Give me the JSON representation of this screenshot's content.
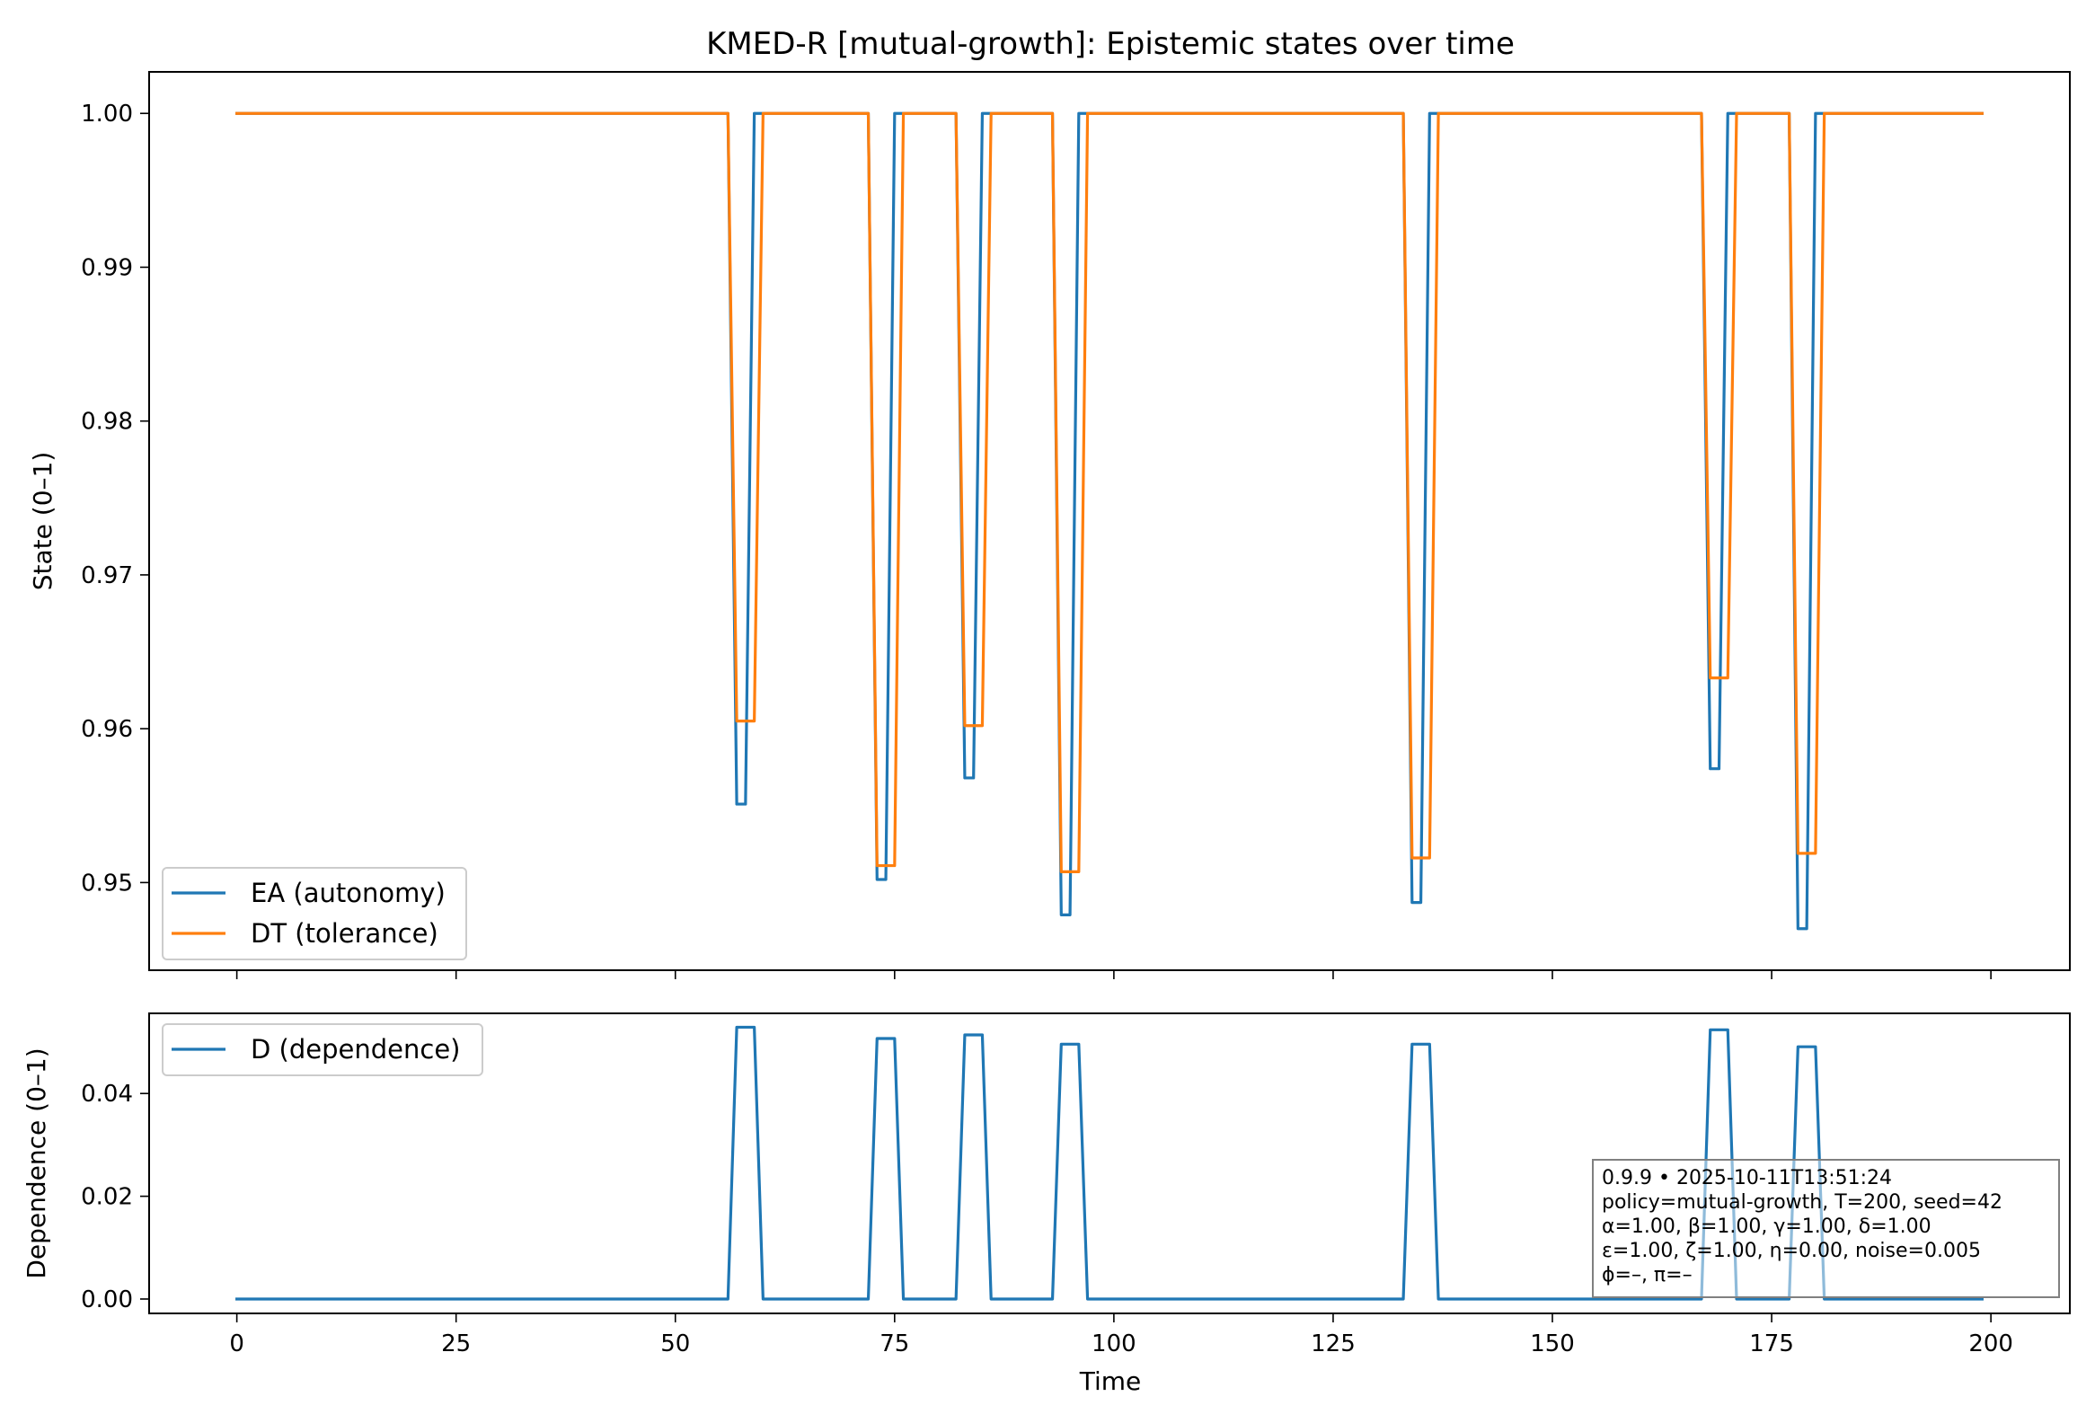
{
  "chart_data": [
    {
      "type": "line",
      "title": "KMED-R [mutual-growth]: Epistemic states over time",
      "xlabel": "",
      "ylabel": "State (0–1)",
      "xlim": [
        -10,
        209
      ],
      "ylim": [
        0.9443,
        1.0027
      ],
      "x_ticks": [
        0,
        25,
        50,
        75,
        100,
        125,
        150,
        175,
        200
      ],
      "x_tick_labels": [
        "",
        "",
        "",
        "",
        "",
        "",
        "",
        "",
        ""
      ],
      "y_ticks": [
        0.95,
        0.96,
        0.97,
        0.98,
        0.99,
        1.0
      ],
      "y_tick_labels": [
        "0.95",
        "0.96",
        "0.97",
        "0.98",
        "0.99",
        "1.00"
      ],
      "grid": false,
      "legend_position": "lower-left",
      "series": [
        {
          "name": "EA (autonomy)",
          "color": "#1f77b4",
          "points": [
            [
              0,
              1.0
            ],
            [
              56,
              1.0
            ],
            [
              57,
              0.9551
            ],
            [
              58,
              0.9551
            ],
            [
              59,
              1.0
            ],
            [
              72,
              1.0
            ],
            [
              73,
              0.9502
            ],
            [
              74,
              0.9502
            ],
            [
              75,
              1.0
            ],
            [
              82,
              1.0
            ],
            [
              83,
              0.9568
            ],
            [
              84,
              0.9568
            ],
            [
              85,
              1.0
            ],
            [
              93,
              1.0
            ],
            [
              94,
              0.9479
            ],
            [
              95,
              0.9479
            ],
            [
              96,
              1.0
            ],
            [
              133,
              1.0
            ],
            [
              134,
              0.9487
            ],
            [
              135,
              0.9487
            ],
            [
              136,
              1.0
            ],
            [
              167,
              1.0
            ],
            [
              168,
              0.9574
            ],
            [
              169,
              0.9574
            ],
            [
              170,
              1.0
            ],
            [
              177,
              1.0
            ],
            [
              178,
              0.947
            ],
            [
              179,
              0.947
            ],
            [
              180,
              1.0
            ],
            [
              199,
              1.0
            ]
          ]
        },
        {
          "name": "DT (tolerance)",
          "color": "#ff7f0e",
          "points": [
            [
              0,
              1.0
            ],
            [
              56,
              1.0
            ],
            [
              57,
              0.9605
            ],
            [
              58,
              0.9605
            ],
            [
              59,
              0.9605
            ],
            [
              60,
              1.0
            ],
            [
              72,
              1.0
            ],
            [
              73,
              0.9511
            ],
            [
              74,
              0.9511
            ],
            [
              75,
              0.9511
            ],
            [
              76,
              1.0
            ],
            [
              82,
              1.0
            ],
            [
              83,
              0.9602
            ],
            [
              84,
              0.9602
            ],
            [
              85,
              0.9602
            ],
            [
              86,
              1.0
            ],
            [
              93,
              1.0
            ],
            [
              94,
              0.9507
            ],
            [
              95,
              0.9507
            ],
            [
              96,
              0.9507
            ],
            [
              97,
              1.0
            ],
            [
              133,
              1.0
            ],
            [
              134,
              0.9516
            ],
            [
              135,
              0.9516
            ],
            [
              136,
              0.9516
            ],
            [
              137,
              1.0
            ],
            [
              167,
              1.0
            ],
            [
              168,
              0.9633
            ],
            [
              169,
              0.9633
            ],
            [
              170,
              0.9633
            ],
            [
              171,
              1.0
            ],
            [
              177,
              1.0
            ],
            [
              178,
              0.9519
            ],
            [
              179,
              0.9519
            ],
            [
              180,
              0.9519
            ],
            [
              181,
              1.0
            ],
            [
              199,
              1.0
            ]
          ]
        }
      ]
    },
    {
      "type": "line",
      "title": "",
      "xlabel": "Time",
      "ylabel": "Dependence (0–1)",
      "xlim": [
        -10,
        209
      ],
      "ylim": [
        -0.0028,
        0.0556
      ],
      "x_ticks": [
        0,
        25,
        50,
        75,
        100,
        125,
        150,
        175,
        200
      ],
      "x_tick_labels": [
        "0",
        "25",
        "50",
        "75",
        "100",
        "125",
        "150",
        "175",
        "200"
      ],
      "y_ticks": [
        0.0,
        0.02,
        0.04
      ],
      "y_tick_labels": [
        "0.00",
        "0.02",
        "0.04"
      ],
      "grid": false,
      "legend_position": "upper-left",
      "series": [
        {
          "name": "D (dependence)",
          "color": "#1f77b4",
          "points": [
            [
              0,
              0.0
            ],
            [
              56,
              0.0
            ],
            [
              57,
              0.0529
            ],
            [
              59,
              0.0529
            ],
            [
              60,
              0.0
            ],
            [
              72,
              0.0
            ],
            [
              73,
              0.0507
            ],
            [
              75,
              0.0507
            ],
            [
              76,
              0.0
            ],
            [
              82,
              0.0
            ],
            [
              83,
              0.0514
            ],
            [
              85,
              0.0514
            ],
            [
              86,
              0.0
            ],
            [
              93,
              0.0
            ],
            [
              94,
              0.0496
            ],
            [
              96,
              0.0496
            ],
            [
              97,
              0.0
            ],
            [
              133,
              0.0
            ],
            [
              134,
              0.0496
            ],
            [
              136,
              0.0496
            ],
            [
              137,
              0.0
            ],
            [
              167,
              0.0
            ],
            [
              168,
              0.0524
            ],
            [
              170,
              0.0524
            ],
            [
              171,
              0.0
            ],
            [
              177,
              0.0
            ],
            [
              178,
              0.0491
            ],
            [
              180,
              0.0491
            ],
            [
              181,
              0.0
            ],
            [
              199,
              0.0
            ]
          ]
        }
      ],
      "info_box": [
        "0.9.9  •  2025-10-11T13:51:24",
        "policy=mutual-growth, T=200, seed=42",
        "α=1.00, β=1.00, γ=1.00, δ=1.00",
        "ε=1.00, ζ=1.00, η=0.00, noise=0.005",
        "ϕ=–, π=–"
      ]
    }
  ]
}
